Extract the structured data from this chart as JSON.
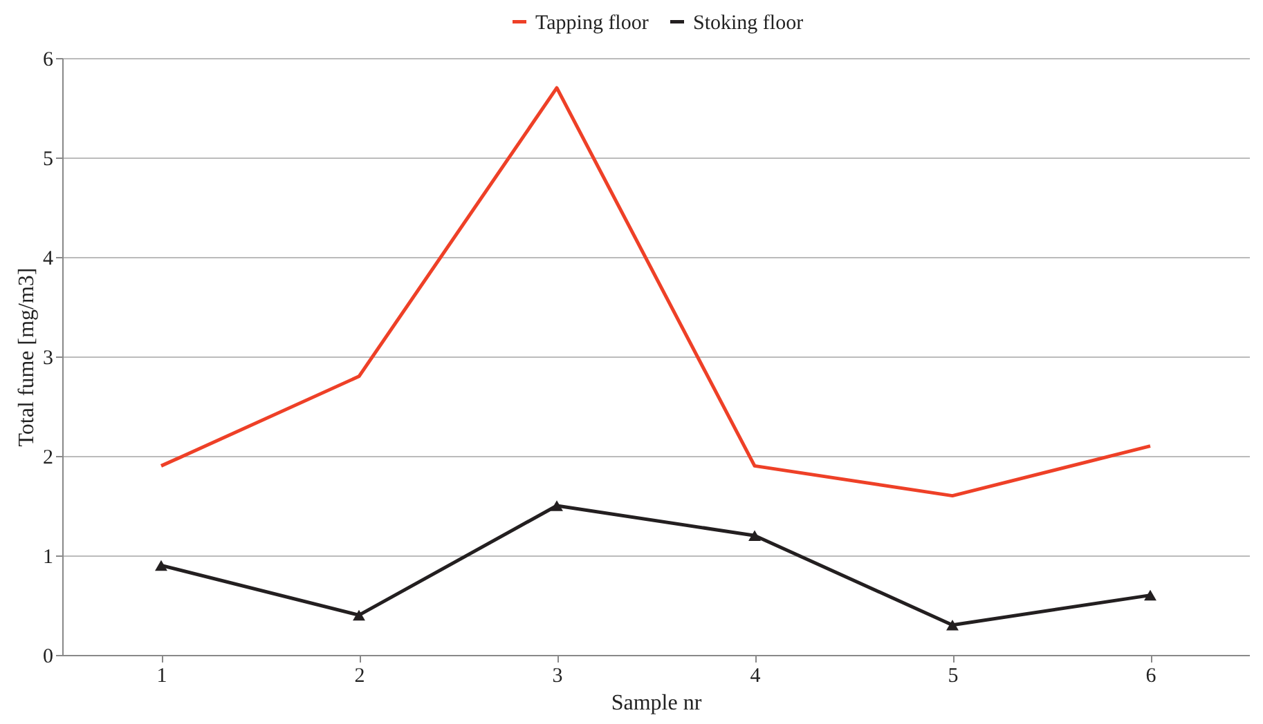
{
  "chart_data": {
    "type": "line",
    "xlabel": "Sample nr",
    "ylabel": "Total fume [mg/m3]",
    "categories": [
      "1",
      "2",
      "3",
      "4",
      "5",
      "6"
    ],
    "series": [
      {
        "name": "Tapping floor",
        "color": "#ee4027",
        "values": [
          1.9,
          2.8,
          5.7,
          1.9,
          1.6,
          2.1
        ],
        "marker": "none"
      },
      {
        "name": "Stoking floor",
        "color": "#231f20",
        "values": [
          0.9,
          0.4,
          1.5,
          1.2,
          0.3,
          0.6
        ],
        "marker": "triangle"
      }
    ],
    "ylim": [
      0,
      6
    ],
    "yticks": [
      0,
      1,
      2,
      3,
      4,
      5,
      6
    ],
    "grid": "y",
    "legend": "top"
  }
}
